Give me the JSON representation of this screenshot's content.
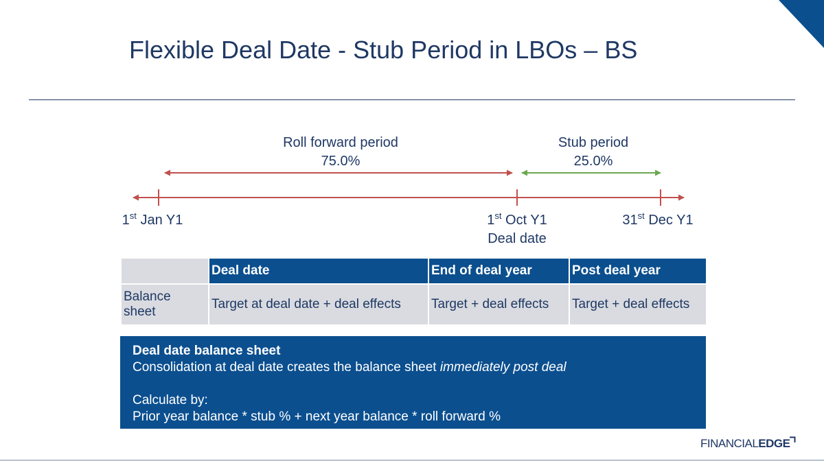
{
  "slide": {
    "title": "Flexible Deal Date - Stub Period in LBOs – BS"
  },
  "timeline": {
    "roll_forward": {
      "label": "Roll forward period",
      "pct": "75.0%"
    },
    "stub": {
      "label": "Stub period",
      "pct": "25.0%"
    },
    "start": {
      "ord": "1",
      "sup": "st",
      "rest": " Jan Y1"
    },
    "deal": {
      "ord": "1",
      "sup": "st",
      "rest": " Oct Y1",
      "sub": "Deal date"
    },
    "end": {
      "ord": "31",
      "sup": "st",
      "rest": " Dec Y1"
    },
    "colors": {
      "roll": "#c0504d",
      "stub": "#6aa84f",
      "axis": "#c0504d"
    }
  },
  "table": {
    "headers": [
      "",
      "Deal date",
      "End of deal year",
      "Post deal year"
    ],
    "rows": [
      {
        "label": "Balance sheet",
        "cells": [
          "Target at deal date + deal effects",
          "Target + deal effects",
          "Target + deal effects"
        ]
      }
    ]
  },
  "info_box": {
    "heading": "Deal date balance sheet",
    "line1_plain": "Consolidation at deal date creates the balance sheet ",
    "line1_italic": "immediately post deal",
    "calc_label": "Calculate by:",
    "calc_formula": "Prior year balance * stub % + next year balance * roll forward %"
  },
  "brand": {
    "financial": "FINANCIAL",
    "edge": "EDGE"
  }
}
